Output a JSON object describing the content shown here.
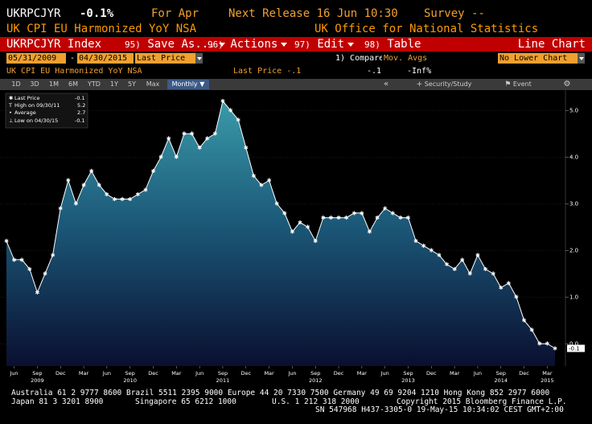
{
  "header": {
    "ticker": "UKRPCJYR",
    "value": "-0.1%",
    "period": "For Apr",
    "next_release": "Next Release 16 Jun 10:30",
    "survey": "Survey --",
    "description": "UK CPI EU Harmonized YoY NSA",
    "source": "UK Office for National Statistics"
  },
  "toolbar": {
    "index_label": "UKRPCJYR Index",
    "save_num": "95)",
    "save_label": "Save As...",
    "actions_num": "96)",
    "actions_label": "Actions",
    "edit_num": "97)",
    "edit_label": "Edit",
    "table_num": "98)",
    "table_label": "Table",
    "chart_type": "Line Chart"
  },
  "controls": {
    "start_date": "05/31/2009",
    "end_date": "04/30/2015",
    "dash": "-",
    "field": "Last Price",
    "compare_label": "1) Compare",
    "compare_value": "Mov. Avgs",
    "lower_chart": "No Lower Chart",
    "series_desc": "UK CPI EU Harmonized YoY NSA",
    "last_price": "Last Price -.1",
    "val1": "-.1",
    "val2": "-Inf%"
  },
  "nav": {
    "periods": [
      "1D",
      "3D",
      "1M",
      "6M",
      "YTD",
      "1Y",
      "5Y",
      "Max"
    ],
    "frequency": "Monthly",
    "security": "Security/Study",
    "event": "Event"
  },
  "colors": {
    "accent": "#f0a030",
    "toolbar": "#c00000",
    "area_top": "#2e8a9a",
    "area_bottom": "#0a1030"
  },
  "legend": {
    "rows": [
      {
        "label": "Last Price",
        "value": "-0.1"
      },
      {
        "label": "High on 09/30/11",
        "value": "5.2"
      },
      {
        "label": "Average",
        "value": "2.7"
      },
      {
        "label": "Low on 04/30/15",
        "value": "-0.1"
      }
    ]
  },
  "chart_data": {
    "type": "area",
    "series": [
      {
        "name": "Last Price",
        "values": [
          2.2,
          1.8,
          1.8,
          1.6,
          1.1,
          1.5,
          1.9,
          2.9,
          3.5,
          3.0,
          3.4,
          3.7,
          3.4,
          3.2,
          3.1,
          3.1,
          3.1,
          3.2,
          3.3,
          3.7,
          4.0,
          4.4,
          4.0,
          4.5,
          4.5,
          4.2,
          4.4,
          4.5,
          5.2,
          5.0,
          4.8,
          4.2,
          3.6,
          3.4,
          3.5,
          3.0,
          2.8,
          2.4,
          2.6,
          2.5,
          2.2,
          2.7,
          2.7,
          2.7,
          2.7,
          2.8,
          2.8,
          2.4,
          2.7,
          2.9,
          2.8,
          2.7,
          2.7,
          2.2,
          2.1,
          2.0,
          1.9,
          1.7,
          1.6,
          1.8,
          1.5,
          1.9,
          1.6,
          1.5,
          1.2,
          1.3,
          1.0,
          0.5,
          0.3,
          0.0,
          0.0,
          -0.1
        ]
      }
    ],
    "start": "2009-05",
    "end": "2015-04",
    "ylim": [
      -0.6,
      5.4
    ],
    "yticks": [
      "5.0",
      "4.0",
      "3.0",
      "2.0",
      "1.0",
      "0.0"
    ],
    "ytick_values": [
      5,
      4,
      3,
      2,
      1,
      0
    ],
    "last_label": "-0.1",
    "xticks": [
      {
        "label": "Jun",
        "year": "",
        "index": 1
      },
      {
        "label": "Sep",
        "year": "2009",
        "index": 4
      },
      {
        "label": "Dec",
        "year": "",
        "index": 7
      },
      {
        "label": "Mar",
        "year": "",
        "index": 10
      },
      {
        "label": "Jun",
        "year": "",
        "index": 13
      },
      {
        "label": "Sep",
        "year": "2010",
        "index": 16
      },
      {
        "label": "Dec",
        "year": "",
        "index": 19
      },
      {
        "label": "Mar",
        "year": "",
        "index": 22
      },
      {
        "label": "Jun",
        "year": "",
        "index": 25
      },
      {
        "label": "Sep",
        "year": "2011",
        "index": 28
      },
      {
        "label": "Dec",
        "year": "",
        "index": 31
      },
      {
        "label": "Mar",
        "year": "",
        "index": 34
      },
      {
        "label": "Jun",
        "year": "",
        "index": 37
      },
      {
        "label": "Sep",
        "year": "2012",
        "index": 40
      },
      {
        "label": "Dec",
        "year": "",
        "index": 43
      },
      {
        "label": "Mar",
        "year": "",
        "index": 46
      },
      {
        "label": "Jun",
        "year": "",
        "index": 49
      },
      {
        "label": "Sep",
        "year": "2013",
        "index": 52
      },
      {
        "label": "Dec",
        "year": "",
        "index": 55
      },
      {
        "label": "Mar",
        "year": "",
        "index": 58
      },
      {
        "label": "Jun",
        "year": "",
        "index": 61
      },
      {
        "label": "Sep",
        "year": "2014",
        "index": 64
      },
      {
        "label": "Dec",
        "year": "",
        "index": 67
      },
      {
        "label": "Mar",
        "year": "",
        "index": 70
      },
      {
        "label": "",
        "year": "2015",
        "index": 70
      }
    ]
  },
  "footer": {
    "line1": "Australia 61 2 9777 8600 Brazil 5511 2395 9000 Europe 44 20 7330 7500 Germany 49 69 9204 1210 Hong Kong 852 2977 6000",
    "line2_left": "Japan 81 3 3201 8900",
    "line2_mid": "Singapore 65 6212 1000",
    "line2_us": "U.S. 1 212 318 2000",
    "line2_right": "Copyright 2015 Bloomberg Finance L.P.",
    "line3": "SN 547968 H437-3305-0 19-May-15 10:34:02 CEST GMT+2:00"
  }
}
